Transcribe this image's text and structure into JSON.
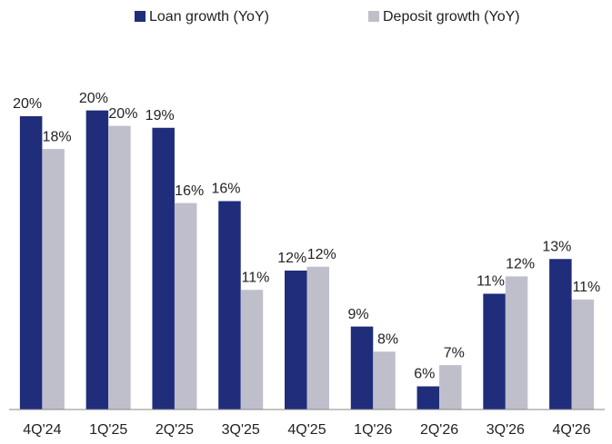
{
  "chart_data": {
    "type": "bar",
    "categories": [
      "4Q'24",
      "1Q'25",
      "2Q'25",
      "3Q'25",
      "4Q'25",
      "1Q'26",
      "2Q'26",
      "3Q'26",
      "4Q'26"
    ],
    "series": [
      {
        "name": "Loan growth (YoY)",
        "color": "#1f2d7b",
        "values": [
          20.0,
          20.3,
          19.4,
          15.6,
          12.0,
          9.1,
          6.0,
          10.8,
          12.6
        ],
        "value_labels": [
          "20%",
          "20%",
          "19%",
          "16%",
          "12%",
          "9%",
          "6%",
          "11%",
          "13%"
        ]
      },
      {
        "name": "Deposit growth (YoY)",
        "color": "#bfbfcc",
        "values": [
          18.3,
          19.5,
          15.5,
          11.0,
          12.2,
          7.8,
          7.1,
          11.7,
          10.5
        ],
        "value_labels": [
          "18%",
          "20%",
          "16%",
          "11%",
          "12%",
          "8%",
          "7%",
          "12%",
          "11%"
        ]
      }
    ],
    "ylim": [
      4.8,
      23.2
    ],
    "legend": "top"
  }
}
